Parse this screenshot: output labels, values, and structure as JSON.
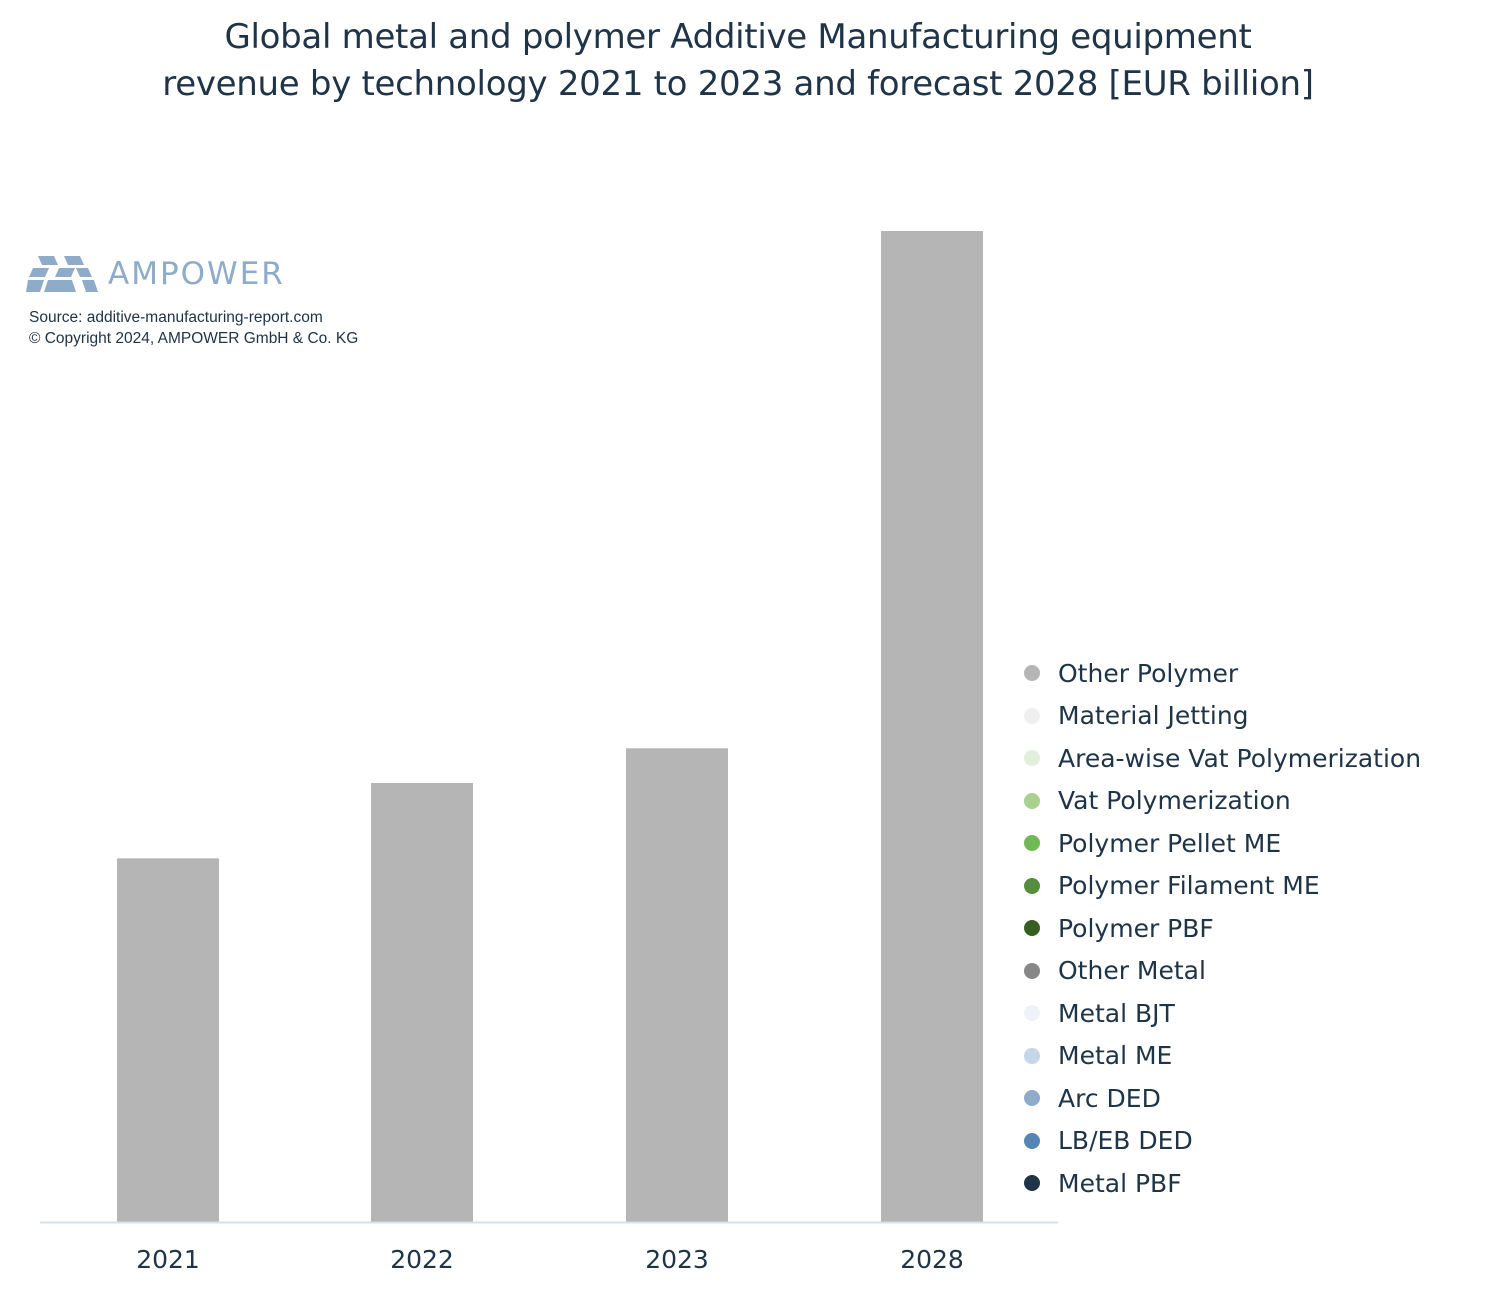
{
  "chart_data": {
    "type": "bar",
    "title_lines": [
      "Global metal and polymer Additive Manufacturing equipment",
      "revenue by technology 2021 to 2023 and forecast 2028 [EUR billion]"
    ],
    "categories": [
      "2021",
      "2022",
      "2023",
      "2028"
    ],
    "values": [
      3.67,
      4.43,
      4.78,
      10.0
    ],
    "bar_color": "#b5b5b5",
    "ylim": [
      0,
      10.5
    ],
    "grid": false,
    "legend_placement": "right",
    "legend": [
      {
        "name": "Other Polymer",
        "color": "#b5b5b5"
      },
      {
        "name": "Material Jetting",
        "color": "#efefef"
      },
      {
        "name": "Area-wise Vat Polymerization",
        "color": "#e2efda"
      },
      {
        "name": "Vat Polymerization",
        "color": "#a9d08e"
      },
      {
        "name": "Polymer Pellet ME",
        "color": "#70b956"
      },
      {
        "name": "Polymer Filament ME",
        "color": "#548e3c"
      },
      {
        "name": "Polymer PBF",
        "color": "#375f23"
      },
      {
        "name": "Other Metal",
        "color": "#878787"
      },
      {
        "name": "Metal BJT",
        "color": "#eef3f9"
      },
      {
        "name": "Metal ME",
        "color": "#c5d6e8"
      },
      {
        "name": "Arc DED",
        "color": "#8eacc9"
      },
      {
        "name": "LB/EB DED",
        "color": "#5585b5"
      },
      {
        "name": "Metal PBF",
        "color": "#203448"
      }
    ]
  },
  "branding": {
    "logo_text": "AMPOWER",
    "source": "Source: additive-manufacturing-report.com",
    "copyright": "© Copyright 2024, AMPOWER GmbH & Co. KG"
  }
}
